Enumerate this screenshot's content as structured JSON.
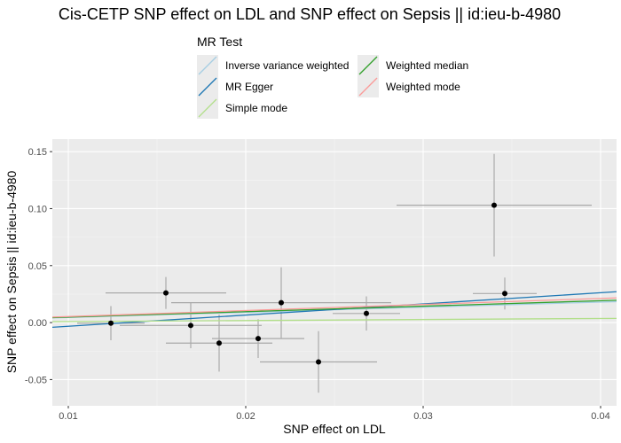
{
  "chart_data": {
    "type": "scatter",
    "title": "Cis-CETP SNP effect on LDL and SNP effect on Sepsis || id:ieu-b-4980",
    "xlabel": "SNP effect on LDL",
    "ylabel": "SNP effect on Sepsis || id:ieu-b-4980",
    "xlim": [
      0.0091,
      0.0409
    ],
    "ylim": [
      -0.073,
      0.161
    ],
    "x_ticks": [
      0.01,
      0.02,
      0.03,
      0.04
    ],
    "x_tick_labels": [
      "0.01",
      "0.02",
      "0.03",
      "0.04"
    ],
    "y_ticks": [
      -0.05,
      0.0,
      0.05,
      0.1,
      0.15
    ],
    "y_tick_labels": [
      "-0.05",
      "0.00",
      "0.05",
      "0.10",
      "0.15"
    ],
    "grid": true,
    "legend": {
      "title": "MR Test",
      "placement": "top",
      "entries": [
        {
          "name": "Inverse variance weighted",
          "color": "#A6CEE3"
        },
        {
          "name": "MR Egger",
          "color": "#1F78B4"
        },
        {
          "name": "Simple mode",
          "color": "#B2DF8A"
        },
        {
          "name": "Weighted median",
          "color": "#33A02C"
        },
        {
          "name": "Weighted mode",
          "color": "#FB9A99"
        }
      ]
    },
    "points": [
      {
        "x": 0.0124,
        "y": -0.0005,
        "x_err": 0.0019,
        "y_err": 0.015
      },
      {
        "x": 0.0155,
        "y": 0.026,
        "x_err": 0.0034,
        "y_err": 0.014
      },
      {
        "x": 0.0169,
        "y": -0.0025,
        "x_err": 0.004,
        "y_err": 0.02
      },
      {
        "x": 0.0185,
        "y": -0.018,
        "x_err": 0.003,
        "y_err": 0.025
      },
      {
        "x": 0.0207,
        "y": -0.014,
        "x_err": 0.0026,
        "y_err": 0.017
      },
      {
        "x": 0.022,
        "y": 0.0175,
        "x_err": 0.0062,
        "y_err": 0.031
      },
      {
        "x": 0.0241,
        "y": -0.0345,
        "x_err": 0.0033,
        "y_err": 0.027
      },
      {
        "x": 0.0268,
        "y": 0.008,
        "x_err": 0.0019,
        "y_err": 0.015
      },
      {
        "x": 0.034,
        "y": 0.103,
        "x_err": 0.0055,
        "y_err": 0.045
      },
      {
        "x": 0.0346,
        "y": 0.0255,
        "x_err": 0.0018,
        "y_err": 0.014
      }
    ],
    "lines": [
      {
        "name": "Inverse variance weighted",
        "color": "#A6CEE3",
        "slope": 0.45,
        "intercept": 0.0
      },
      {
        "name": "MR Egger",
        "color": "#1F78B4",
        "slope": 0.98,
        "intercept": -0.013
      },
      {
        "name": "Simple mode",
        "color": "#B2DF8A",
        "slope": 0.09,
        "intercept": 0.0
      },
      {
        "name": "Weighted median",
        "color": "#33A02C",
        "slope": 0.48,
        "intercept": 0.0
      },
      {
        "name": "Weighted mode",
        "color": "#FB9A99",
        "slope": 0.53,
        "intercept": 0.0
      }
    ]
  }
}
